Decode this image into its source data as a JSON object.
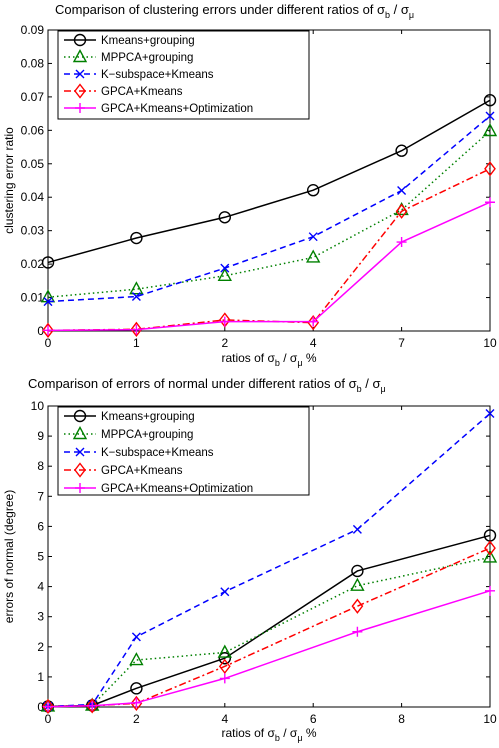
{
  "chart_data": [
    {
      "type": "line",
      "title": "Comparison of clustering errors under different ratios of σ_b / σ_μ",
      "title_parts": {
        "main": "Comparison of clustering errors under different ratios of σ",
        "sub1": "b",
        "mid": " / σ",
        "sub2": "μ"
      },
      "xlabel": "ratios of σ_b / σ_μ %",
      "xlabel_parts": {
        "main": "ratios of σ",
        "sub1": "b",
        "mid": " / σ",
        "sub2": "μ",
        "tail": " %"
      },
      "ylabel": "clustering error ratio",
      "x_scale": "categorical",
      "x": [
        0,
        1,
        2,
        4,
        7,
        10
      ],
      "xticks": [
        "0",
        "1",
        "2",
        "4",
        "7",
        "10"
      ],
      "ylim": [
        0,
        0.09
      ],
      "yticks": [
        "0",
        "0.01",
        "0.02",
        "0.03",
        "0.04",
        "0.05",
        "0.06",
        "0.07",
        "0.08",
        "0.09"
      ],
      "legend_position": "top-left",
      "series": [
        {
          "name": "Kmeans+grouping",
          "color": "#000000",
          "style": "solid",
          "marker": "circle",
          "values": [
            0.0205,
            0.0278,
            0.034,
            0.0421,
            0.0539,
            0.069
          ]
        },
        {
          "name": "MPPCA+grouping",
          "color": "#008000",
          "style": "dotted",
          "marker": "triangle",
          "values": [
            0.0101,
            0.0125,
            0.0165,
            0.022,
            0.0362,
            0.0598
          ]
        },
        {
          "name": "K-subspace+Kmeans",
          "color": "#0000ff",
          "style": "dashed",
          "marker": "x",
          "values": [
            0.0088,
            0.0103,
            0.0188,
            0.0282,
            0.042,
            0.0643
          ]
        },
        {
          "name": "GPCA+Kmeans",
          "color": "#ff0000",
          "style": "dashdot",
          "marker": "diamond",
          "values": [
            0.0002,
            0.0005,
            0.0033,
            0.0025,
            0.0358,
            0.0485
          ]
        },
        {
          "name": "GPCA+Kmeans+Optimization",
          "color": "#ff00ff",
          "style": "solid",
          "marker": "plus",
          "values": [
            0.0002,
            0.0004,
            0.0028,
            0.0028,
            0.0266,
            0.0385
          ]
        }
      ]
    },
    {
      "type": "line",
      "title": "Comparison of errors of normal under different ratios of σ_b / σ_μ",
      "title_parts": {
        "main": "Comparison of errors of normal under different ratios of σ",
        "sub1": "b",
        "mid": " / σ",
        "sub2": "μ"
      },
      "xlabel": "ratios of σ_b / σ_μ %",
      "xlabel_parts": {
        "main": "ratios of σ",
        "sub1": "b",
        "mid": " / σ",
        "sub2": "μ",
        "tail": " %"
      },
      "ylabel": "errors of normal (degree)",
      "x_scale": "linear",
      "xlim": [
        0,
        10
      ],
      "x": [
        0,
        1,
        2,
        4,
        7,
        10
      ],
      "xticks": [
        "0",
        "2",
        "4",
        "6",
        "8",
        "10"
      ],
      "ylim": [
        0,
        10
      ],
      "yticks": [
        "0",
        "1",
        "2",
        "3",
        "4",
        "5",
        "6",
        "7",
        "8",
        "9",
        "10"
      ],
      "legend_position": "top-left",
      "series": [
        {
          "name": "Kmeans+grouping",
          "color": "#000000",
          "style": "solid",
          "marker": "circle",
          "values": [
            0.02,
            0.05,
            0.62,
            1.62,
            4.52,
            5.7
          ]
        },
        {
          "name": "MPPCA+grouping",
          "color": "#008000",
          "style": "dotted",
          "marker": "triangle",
          "values": [
            0.02,
            0.05,
            1.56,
            1.81,
            4.03,
            4.97
          ]
        },
        {
          "name": "K-subspace+Kmeans",
          "color": "#0000ff",
          "style": "dashed",
          "marker": "x",
          "values": [
            0.02,
            0.08,
            2.33,
            3.83,
            5.9,
            9.75
          ]
        },
        {
          "name": "GPCA+Kmeans",
          "color": "#ff0000",
          "style": "dashdot",
          "marker": "diamond",
          "values": [
            0.02,
            0.04,
            0.12,
            1.35,
            3.35,
            5.28
          ]
        },
        {
          "name": "GPCA+Kmeans+Optimization",
          "color": "#ff00ff",
          "style": "solid",
          "marker": "plus",
          "values": [
            0.01,
            0.04,
            0.14,
            0.95,
            2.5,
            3.86
          ]
        }
      ]
    }
  ]
}
